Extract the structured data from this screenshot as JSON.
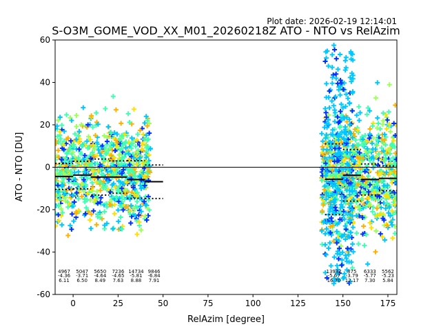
{
  "chart_data": {
    "type": "scatter",
    "plot_date": "Plot date: 2026-02-19 12:14:01",
    "title": "S-O3M_GOME_VOD_XX_M01_20260218Z ATO - NTO vs RelAzim",
    "xlabel": "RelAzim [degree]",
    "ylabel": "ATO - NTO [DU]",
    "xlim": [
      -10,
      180
    ],
    "ylim": [
      -60,
      60
    ],
    "xticks": [
      0,
      25,
      50,
      75,
      100,
      125,
      150,
      175
    ],
    "yticks": [
      -60,
      -40,
      -20,
      0,
      20,
      40,
      60
    ],
    "grid": false,
    "zero_line": 0,
    "clusters": [
      {
        "x_range": [
          -10,
          43
        ],
        "y_center": -2,
        "y_spread": 12
      },
      {
        "x_range": [
          138,
          180
        ],
        "y_center": -3,
        "y_spread": 14
      }
    ],
    "bins": [
      {
        "x0": -10,
        "x1": 0,
        "count": "4967",
        "mean": -4.36,
        "std": 6.11,
        "mean_label": "-4.36",
        "std_label": "6.11"
      },
      {
        "x0": 0,
        "x1": 10,
        "count": "5047",
        "mean": -3.71,
        "std": 6.5,
        "mean_label": "-3.71",
        "std_label": "6.50"
      },
      {
        "x0": 10,
        "x1": 20,
        "count": "5650",
        "mean": -4.64,
        "std": 8.49,
        "mean_label": "-4.64",
        "std_label": "8.49"
      },
      {
        "x0": 20,
        "x1": 30,
        "count": "7236",
        "mean": -4.65,
        "std": 7.63,
        "mean_label": "-4.65",
        "std_label": "7.63"
      },
      {
        "x0": 30,
        "x1": 40,
        "count": "14734",
        "mean": -5.81,
        "std": 8.88,
        "mean_label": "-5.81",
        "std_label": "8.88"
      },
      {
        "x0": 40,
        "x1": 50,
        "count": "9846",
        "mean": -6.84,
        "std": 7.91,
        "mean_label": "-6.84",
        "std_label": "7.91"
      },
      {
        "x0": 140,
        "x1": 150,
        "count": "13982",
        "mean": -5.67,
        "std": 16.7,
        "mean_label": "-5.67",
        "std_label": "16.70"
      },
      {
        "x0": 150,
        "x1": 160,
        "count": "875",
        "mean": -3.79,
        "std": 12.17,
        "mean_label": "-3.79",
        "std_label": "12.17"
      },
      {
        "x0": 160,
        "x1": 170,
        "count": "6333",
        "mean": -5.77,
        "std": 7.3,
        "mean_label": "-5.77",
        "std_label": "7.30"
      },
      {
        "x0": 170,
        "x1": 180,
        "count": "5562",
        "mean": -5.23,
        "std": 5.84,
        "mean_label": "-5.23",
        "std_label": "5.84"
      }
    ],
    "colors": {
      "cyan": "#00c8ff",
      "aqua_green": "#40ffb0",
      "light_green": "#9dff5a",
      "yellow": "#ffe000",
      "orange": "#ffb000",
      "blue": "#0030ff",
      "mean_line": "#000000"
    }
  }
}
